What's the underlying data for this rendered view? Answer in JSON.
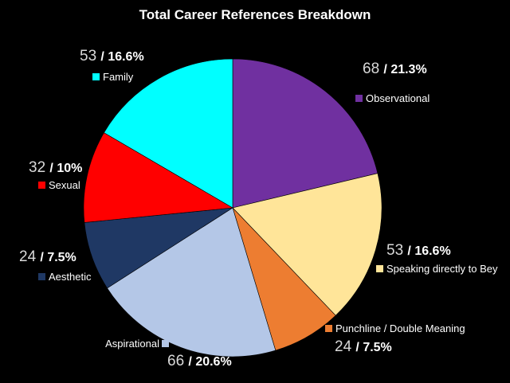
{
  "chart_data": {
    "type": "pie",
    "title": "Total Career References Breakdown",
    "start_angle_deg": 0,
    "direction": "clockwise",
    "slices": [
      {
        "label": "Observational",
        "count": "68",
        "value": 21.3,
        "value_label": "21.3%",
        "color": "#7030a0"
      },
      {
        "label": "Speaking directly to Bey",
        "count": "53",
        "value": 16.6,
        "value_label": "16.6%",
        "color": "#ffe599"
      },
      {
        "label": "Punchline / Double Meaning",
        "count": "24",
        "value": 7.5,
        "value_label": "7.5%",
        "color": "#ed7d31"
      },
      {
        "label": "Aspirational",
        "count": "66",
        "value": 20.6,
        "value_label": "20.6%",
        "color": "#b4c7e7"
      },
      {
        "label": "Aesthetic",
        "count": "24",
        "value": 7.5,
        "value_label": "7.5%",
        "color": "#1f3864"
      },
      {
        "label": "Sexual",
        "count": "32",
        "value": 10,
        "value_label": "10%",
        "color": "#ff0000"
      },
      {
        "label": "Family",
        "count": "53",
        "value": 16.6,
        "value_label": "16.6%",
        "color": "#00ffff"
      }
    ]
  }
}
